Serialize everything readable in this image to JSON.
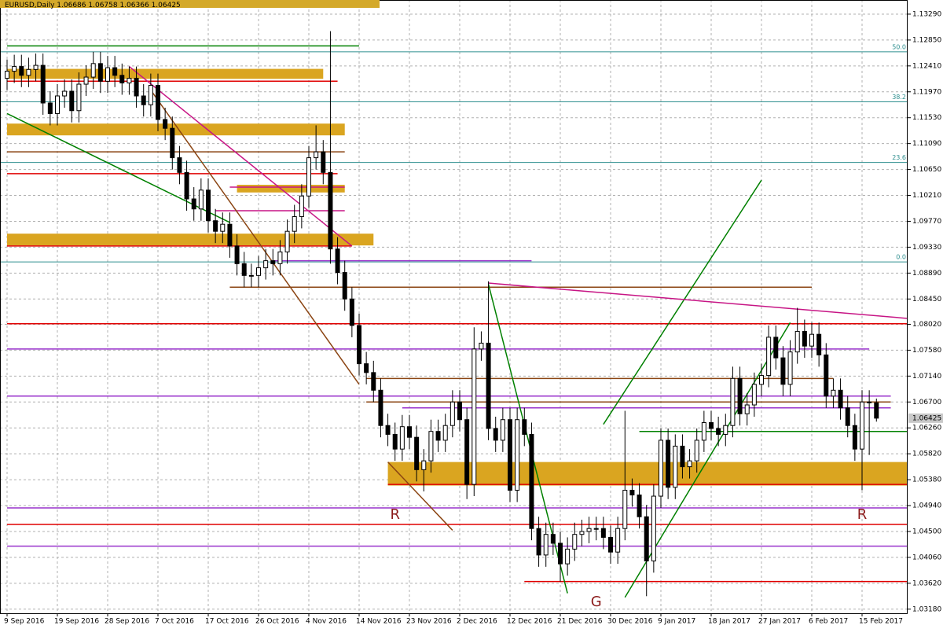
{
  "chart_data": {
    "type": "candlestick",
    "title": "EURUSD,Daily",
    "categories": [
      "9 Sep 2016",
      null,
      null,
      null,
      null,
      null,
      null,
      "19 Sep 2016",
      null,
      null,
      null,
      null,
      null,
      null,
      "28 Sep 2016",
      null,
      null,
      null,
      null,
      null,
      null,
      "7 Oct 2016",
      null,
      null,
      null,
      null,
      null,
      null,
      "17 Oct 2016",
      null,
      null,
      null,
      null,
      null,
      null,
      "26 Oct 2016",
      null,
      null,
      null,
      null,
      null,
      null,
      "4 Nov 2016",
      null,
      null,
      null,
      null,
      null,
      null,
      "14 Nov 2016",
      null,
      null,
      null,
      null,
      null,
      null,
      "23 Nov 2016",
      null,
      null,
      null,
      null,
      null,
      null,
      "2 Dec 2016",
      null,
      null,
      null,
      null,
      null,
      null,
      "12 Dec 2016",
      null,
      null,
      null,
      null,
      null,
      null,
      "21 Dec 2016",
      null,
      null,
      null,
      null,
      null,
      null,
      "30 Dec 2016",
      null,
      null,
      null,
      null,
      null,
      null,
      "9 Jan 2017",
      null,
      null,
      null,
      null,
      null,
      null,
      "18 Jan 2017",
      null,
      null,
      null,
      null,
      null,
      null,
      "27 Jan 2017",
      null,
      null,
      null,
      null,
      null,
      null,
      "6 Feb 2017",
      null,
      null,
      null,
      null,
      null,
      null,
      "15 Feb 2017",
      null,
      null
    ],
    "open": [
      1.122,
      1.1232,
      1.124,
      1.1225,
      1.1235,
      1.1242,
      1.1178,
      1.116,
      1.119,
      1.1198,
      1.1165,
      1.121,
      1.1222,
      1.1245,
      1.1215,
      1.1238,
      1.1225,
      1.1212,
      1.122,
      1.119,
      1.1175,
      1.1208,
      1.115,
      1.1135,
      1.1085,
      1.106,
      1.1015,
      1.0998,
      1.103,
      1.0978,
      1.096,
      1.0972,
      1.0935,
      1.0905,
      1.0885,
      1.0885,
      1.0898,
      1.091,
      1.0905,
      1.0925,
      1.096,
      1.0985,
      1.102,
      1.1085,
      1.1095,
      1.106,
      1.093,
      1.089,
      1.0845,
      1.08,
      1.0735,
      1.072,
      1.069,
      1.063,
      1.0615,
      1.059,
      1.0628,
      1.061,
      1.0555,
      1.057,
      1.062,
      1.0605,
      1.063,
      1.067,
      1.064,
      1.053,
      1.076,
      1.077,
      1.0625,
      1.0605,
      1.064,
      1.052,
      1.064,
      1.0615,
      1.0455,
      1.041,
      1.0445,
      1.043,
      1.0395,
      1.042,
      1.0445,
      1.045,
      1.0455,
      1.0455,
      1.044,
      1.0415,
      1.0455,
      1.052,
      1.0512,
      1.0475,
      1.04,
      1.051,
      1.0605,
      1.0525,
      1.0595,
      1.056,
      1.057,
      1.0605,
      1.0635,
      1.0625,
      1.0615,
      1.063,
      1.071,
      1.065,
      1.0665,
      1.07,
      1.0715,
      1.078,
      1.0745,
      1.07,
      1.0755,
      1.079,
      1.0765,
      1.0785,
      1.075,
      1.068,
      1.069,
      1.066,
      1.063,
      1.059,
      1.067,
      1.06686
    ],
    "high": [
      1.1252,
      1.126,
      1.126,
      1.1255,
      1.1262,
      1.1262,
      1.1198,
      1.121,
      1.1218,
      1.1218,
      1.123,
      1.1242,
      1.1265,
      1.1265,
      1.1258,
      1.1258,
      1.1245,
      1.124,
      1.124,
      1.121,
      1.1228,
      1.1228,
      1.117,
      1.1155,
      1.1105,
      1.108,
      1.1035,
      1.105,
      1.105,
      1.0998,
      1.0992,
      1.0992,
      1.0955,
      1.0925,
      1.0905,
      1.0918,
      1.093,
      1.093,
      1.0945,
      1.098,
      1.1005,
      1.104,
      1.1105,
      1.114,
      1.1115,
      1.13,
      1.095,
      1.091,
      1.0865,
      1.082,
      1.0755,
      1.074,
      1.071,
      1.065,
      1.0635,
      1.0648,
      1.0648,
      1.063,
      1.059,
      1.064,
      1.064,
      1.065,
      1.069,
      1.069,
      1.066,
      1.0797,
      1.079,
      1.0875,
      1.0645,
      1.066,
      1.066,
      1.066,
      1.066,
      1.0635,
      1.0475,
      1.0465,
      1.0465,
      1.045,
      1.044,
      1.0465,
      1.047,
      1.0475,
      1.0475,
      1.0475,
      1.046,
      1.0475,
      1.0655,
      1.054,
      1.0532,
      1.0495,
      1.053,
      1.0625,
      1.0625,
      1.0615,
      1.0615,
      1.059,
      1.0625,
      1.0655,
      1.0655,
      1.0645,
      1.065,
      1.073,
      1.073,
      1.0685,
      1.072,
      1.0735,
      1.08,
      1.08,
      1.0765,
      1.0775,
      1.083,
      1.081,
      1.0805,
      1.0805,
      1.077,
      1.071,
      1.071,
      1.068,
      1.065,
      1.069,
      1.069,
      1.06758
    ],
    "low": [
      1.12,
      1.1212,
      1.1205,
      1.1205,
      1.1215,
      1.1158,
      1.114,
      1.114,
      1.117,
      1.1145,
      1.1145,
      1.119,
      1.1202,
      1.1195,
      1.1195,
      1.1205,
      1.1192,
      1.1192,
      1.117,
      1.1155,
      1.1155,
      1.113,
      1.1115,
      1.1065,
      1.104,
      1.0995,
      1.0978,
      1.0978,
      1.0958,
      1.094,
      1.094,
      1.0915,
      1.0885,
      1.0865,
      1.0865,
      1.0865,
      1.0878,
      1.0885,
      1.0885,
      1.0905,
      1.094,
      1.0965,
      1.1,
      1.1065,
      1.104,
      1.0905,
      1.087,
      1.0825,
      1.078,
      1.0715,
      1.07,
      1.067,
      1.061,
      1.0595,
      1.057,
      1.057,
      1.059,
      1.0535,
      1.0518,
      1.055,
      1.0585,
      1.0585,
      1.061,
      1.062,
      1.0505,
      1.051,
      1.074,
      1.0605,
      1.0585,
      1.0585,
      1.05,
      1.05,
      1.0595,
      1.0435,
      1.039,
      1.039,
      1.041,
      1.0365,
      1.0375,
      1.04,
      1.0425,
      1.043,
      1.0435,
      1.042,
      1.0395,
      1.0395,
      1.0435,
      1.0492,
      1.0455,
      1.034,
      1.038,
      1.049,
      1.0505,
      1.0505,
      1.054,
      1.054,
      1.055,
      1.0585,
      1.0605,
      1.0595,
      1.0595,
      1.061,
      1.063,
      1.063,
      1.0645,
      1.068,
      1.0695,
      1.0725,
      1.068,
      1.068,
      1.0735,
      1.0745,
      1.0745,
      1.073,
      1.066,
      1.066,
      1.064,
      1.061,
      1.057,
      1.052,
      1.058,
      1.06366
    ],
    "close": [
      1.1232,
      1.124,
      1.1225,
      1.1235,
      1.1242,
      1.1178,
      1.116,
      1.119,
      1.1198,
      1.1165,
      1.121,
      1.1222,
      1.1245,
      1.1215,
      1.1238,
      1.1225,
      1.1212,
      1.122,
      1.119,
      1.1175,
      1.1208,
      1.115,
      1.1135,
      1.1085,
      1.106,
      1.1015,
      1.0998,
      1.103,
      1.0978,
      1.096,
      1.0972,
      1.0935,
      1.0905,
      1.0885,
      1.0885,
      1.0898,
      1.091,
      1.0905,
      1.0925,
      1.096,
      1.0985,
      1.102,
      1.1085,
      1.1095,
      1.106,
      1.093,
      1.089,
      1.0845,
      1.08,
      1.0735,
      1.072,
      1.069,
      1.063,
      1.0615,
      1.059,
      1.0628,
      1.061,
      1.0555,
      1.057,
      1.062,
      1.0605,
      1.063,
      1.067,
      1.064,
      1.053,
      1.076,
      1.077,
      1.0625,
      1.0605,
      1.064,
      1.052,
      1.064,
      1.0615,
      1.0455,
      1.041,
      1.0445,
      1.043,
      1.0395,
      1.042,
      1.0445,
      1.045,
      1.0455,
      1.0455,
      1.044,
      1.0415,
      1.0455,
      1.052,
      1.0512,
      1.0475,
      1.04,
      1.051,
      1.0605,
      1.0525,
      1.0595,
      1.056,
      1.057,
      1.0605,
      1.0635,
      1.0625,
      1.0615,
      1.063,
      1.071,
      1.065,
      1.0665,
      1.07,
      1.0715,
      1.078,
      1.0745,
      1.07,
      1.0755,
      1.079,
      1.0765,
      1.0785,
      1.075,
      1.068,
      1.069,
      1.066,
      1.063,
      1.059,
      1.067,
      1.06686,
      1.06425
    ],
    "ylim": [
      1.0311,
      1.1353
    ],
    "yticks": [
      {
        "value": 1.1329,
        "label": "1.13290"
      },
      {
        "value": 1.1285,
        "label": "1.12850"
      },
      {
        "value": 1.1241,
        "label": "1.12410"
      },
      {
        "value": 1.1197,
        "label": "1.11970"
      },
      {
        "value": 1.1153,
        "label": "1.11530"
      },
      {
        "value": 1.1109,
        "label": "1.11090"
      },
      {
        "value": 1.1065,
        "label": "1.10650"
      },
      {
        "value": 1.1021,
        "label": "1.10210"
      },
      {
        "value": 1.0977,
        "label": "1.09770"
      },
      {
        "value": 1.0933,
        "label": "1.09330"
      },
      {
        "value": 1.0889,
        "label": "1.08890"
      },
      {
        "value": 1.0845,
        "label": "1.08450"
      },
      {
        "value": 1.0802,
        "label": "1.08020"
      },
      {
        "value": 1.0758,
        "label": "1.07580"
      },
      {
        "value": 1.0714,
        "label": "1.07140"
      },
      {
        "value": 1.067,
        "label": "1.06700"
      },
      {
        "value": 1.0626,
        "label": "1.06260"
      },
      {
        "value": 1.0582,
        "label": "1.05820"
      },
      {
        "value": 1.0538,
        "label": "1.05380"
      },
      {
        "value": 1.0494,
        "label": "1.04940"
      },
      {
        "value": 1.045,
        "label": "1.04500"
      },
      {
        "value": 1.0406,
        "label": "1.04060"
      },
      {
        "value": 1.0362,
        "label": "1.03620"
      },
      {
        "value": 1.0318,
        "label": "1.03180"
      }
    ],
    "grid": true,
    "bull_color": "#ffffff",
    "bear_color": "#000000",
    "zones": [
      {
        "from": 0,
        "to": 44,
        "low": 1.1219,
        "high": 1.1236,
        "color": "#daa520"
      },
      {
        "from": 0,
        "to": 47,
        "low": 1.1123,
        "high": 1.1143,
        "color": "#daa520"
      },
      {
        "from": 0,
        "to": 51,
        "low": 1.0936,
        "high": 1.0956,
        "color": "#daa520"
      },
      {
        "from": 32,
        "to": 47,
        "low": 1.1026,
        "high": 1.1039,
        "color": "#daa520"
      },
      {
        "from": 53,
        "to": 126,
        "low": 1.0528,
        "high": 1.0568,
        "color": "#daa520"
      }
    ],
    "hlines": [
      {
        "value": 1.0803,
        "from": 0,
        "to": 126,
        "color": "#e00000"
      },
      {
        "value": 1.0462,
        "from": 0,
        "to": 126,
        "color": "#e00000"
      },
      {
        "value": 1.053,
        "from": 53,
        "to": 126,
        "color": "#e00000"
      },
      {
        "value": 1.0365,
        "from": 72,
        "to": 126,
        "color": "#e00000"
      },
      {
        "value": 1.1215,
        "from": 0,
        "to": 46,
        "color": "#e00000"
      },
      {
        "value": 1.1058,
        "from": 0,
        "to": 46,
        "color": "#e00000"
      },
      {
        "value": 1.0935,
        "from": 0,
        "to": 48,
        "color": "#e00000"
      },
      {
        "value": 1.076,
        "from": 0,
        "to": 120,
        "color": "#9932cc"
      },
      {
        "value": 1.068,
        "from": 0,
        "to": 123,
        "color": "#9932cc"
      },
      {
        "value": 1.049,
        "from": 0,
        "to": 126,
        "color": "#9932cc"
      },
      {
        "value": 1.0425,
        "from": 0,
        "to": 126,
        "color": "#9932cc"
      },
      {
        "value": 1.091,
        "from": 37,
        "to": 73,
        "color": "#9932cc"
      },
      {
        "value": 1.066,
        "from": 55,
        "to": 123,
        "color": "#9932cc"
      },
      {
        "value": 1.0995,
        "from": 29,
        "to": 47,
        "color": "#c71585"
      },
      {
        "value": 1.1035,
        "from": 31,
        "to": 47,
        "color": "#c71585"
      },
      {
        "value": 1.0865,
        "from": 31,
        "to": 112,
        "color": "#8b4513"
      },
      {
        "value": 1.071,
        "from": 50,
        "to": 115,
        "color": "#8b4513"
      },
      {
        "value": 1.1095,
        "from": 0,
        "to": 47,
        "color": "#8b4513"
      },
      {
        "value": 1.067,
        "from": 50,
        "to": 123,
        "color": "#8b4513"
      },
      {
        "value": 1.062,
        "from": 88,
        "to": 126,
        "color": "#008000"
      },
      {
        "value": 1.1275,
        "from": 0,
        "to": 49,
        "color": "#008000"
      }
    ],
    "trendlines": [
      {
        "x": [
          0,
          31
        ],
        "y": [
          1.116,
          1.0975
        ],
        "color": "#008000"
      },
      {
        "x": [
          17,
          48
        ],
        "y": [
          1.124,
          1.0935
        ],
        "color": "#c71585"
      },
      {
        "x": [
          20,
          49
        ],
        "y": [
          1.12,
          1.07
        ],
        "color": "#8b4513"
      },
      {
        "x": [
          53,
          62
        ],
        "y": [
          1.0568,
          1.0452
        ],
        "color": "#8b4513"
      },
      {
        "x": [
          67,
          78
        ],
        "y": [
          1.087,
          1.0345
        ],
        "color": "#008000"
      },
      {
        "x": [
          86,
          109
        ],
        "y": [
          1.0338,
          1.0805
        ],
        "color": "#008000"
      },
      {
        "x": [
          83,
          105
        ],
        "y": [
          1.0632,
          1.1047
        ],
        "color": "#008000"
      },
      {
        "x": [
          67,
          126
        ],
        "y": [
          1.0872,
          1.0812
        ],
        "color": "#c71585"
      }
    ],
    "fib_levels": [
      {
        "label": "50.0",
        "price": 1.1265
      },
      {
        "label": "38.2",
        "price": 1.118
      },
      {
        "label": "23.6",
        "price": 1.1077
      },
      {
        "label": "0.0",
        "price": 1.0908
      }
    ],
    "fib_color": "#2f8f8f",
    "annotations": [
      {
        "text": "R",
        "x": 54,
        "price": 1.0478,
        "color": "#8b1a1a"
      },
      {
        "text": "R",
        "x": 119,
        "price": 1.0478,
        "color": "#8b1a1a"
      },
      {
        "text": "G",
        "x": 82,
        "price": 1.033,
        "color": "#8b1a1a"
      }
    ]
  }
}
